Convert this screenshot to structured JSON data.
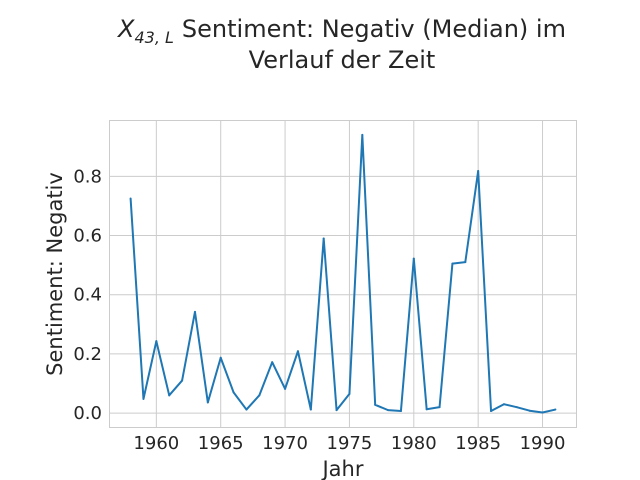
{
  "chart_data": {
    "type": "line",
    "title_math": "X",
    "title_math_sub": "43, L",
    "title_line1": "Sentiment: Negativ (Median) im",
    "title_line2": "Verlauf der Zeit",
    "xlabel": "Jahr",
    "ylabel": "Sentiment: Negativ",
    "xlim": [
      1956.4,
      1992.6
    ],
    "ylim": [
      -0.047,
      0.987
    ],
    "xticks": [
      1960,
      1965,
      1970,
      1975,
      1980,
      1985,
      1990
    ],
    "yticks": [
      0.0,
      0.2,
      0.4,
      0.6,
      0.8
    ],
    "grid": true,
    "line_color": "#1f77b4",
    "series": [
      {
        "x": [
          1958,
          1959,
          1960,
          1961,
          1962,
          1963,
          1964,
          1965,
          1966,
          1967,
          1968,
          1969,
          1970,
          1971,
          1972,
          1973,
          1974,
          1975,
          1976,
          1977,
          1978,
          1979,
          1980,
          1981,
          1982,
          1983,
          1984,
          1985,
          1986,
          1987,
          1988,
          1989,
          1990,
          1991
        ],
        "values": [
          0.725,
          0.048,
          0.243,
          0.06,
          0.11,
          0.342,
          0.036,
          0.187,
          0.07,
          0.012,
          0.06,
          0.172,
          0.082,
          0.209,
          0.012,
          0.59,
          0.01,
          0.065,
          0.94,
          0.028,
          0.01,
          0.007,
          0.522,
          0.013,
          0.02,
          0.505,
          0.51,
          0.818,
          0.007,
          0.03,
          0.02,
          0.008,
          0.002,
          0.012
        ]
      }
    ]
  }
}
